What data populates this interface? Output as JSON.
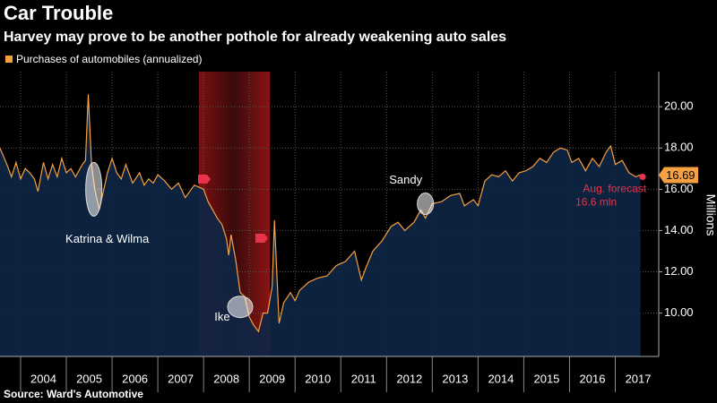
{
  "chart_data": {
    "type": "area",
    "title": "Car Trouble",
    "subtitle": "Harvey may prove to be another pothole for already weakening auto sales",
    "ylabel": "Millions",
    "source": "Source: Ward's Automotive",
    "x": [
      2003.55,
      2003.7,
      2003.8,
      2003.9,
      2004.0,
      2004.1,
      2004.2,
      2004.3,
      2004.38,
      2004.5,
      2004.6,
      2004.7,
      2004.8,
      2004.9,
      2005.0,
      2005.1,
      2005.2,
      2005.35,
      2005.42,
      2005.48,
      2005.55,
      2005.62,
      2005.72,
      2005.9,
      2006.0,
      2006.1,
      2006.2,
      2006.3,
      2006.45,
      2006.6,
      2006.7,
      2006.8,
      2006.9,
      2007.0,
      2007.15,
      2007.3,
      2007.45,
      2007.6,
      2007.8,
      2008.0,
      2008.1,
      2008.2,
      2008.3,
      2008.4,
      2008.5,
      2008.55,
      2008.6,
      2008.7,
      2008.8,
      2008.9,
      2009.0,
      2009.1,
      2009.2,
      2009.3,
      2009.4,
      2009.5,
      2009.55,
      2009.65,
      2009.75,
      2009.9,
      2010.0,
      2010.1,
      2010.3,
      2010.5,
      2010.7,
      2010.9,
      2011.1,
      2011.3,
      2011.45,
      2011.55,
      2011.7,
      2011.9,
      2012.1,
      2012.25,
      2012.4,
      2012.6,
      2012.75,
      2012.85,
      2013.0,
      2013.2,
      2013.4,
      2013.6,
      2013.7,
      2013.9,
      2014.0,
      2014.15,
      2014.3,
      2014.45,
      2014.6,
      2014.75,
      2014.9,
      2015.05,
      2015.2,
      2015.35,
      2015.5,
      2015.65,
      2015.8,
      2015.95,
      2016.05,
      2016.2,
      2016.35,
      2016.5,
      2016.65,
      2016.8,
      2016.9,
      2017.0,
      2017.15,
      2017.3,
      2017.45,
      2017.55
    ],
    "series": [
      {
        "name": "Purchases of automobiles (annualized)",
        "color": "#f5a041",
        "values": [
          18.0,
          17.2,
          16.6,
          17.3,
          16.5,
          17.0,
          16.8,
          16.5,
          15.9,
          17.3,
          16.5,
          17.2,
          16.6,
          17.5,
          16.8,
          17.0,
          16.6,
          17.2,
          17.4,
          20.6,
          17.2,
          16.0,
          15.0,
          16.8,
          17.5,
          16.8,
          16.5,
          17.2,
          16.3,
          16.8,
          16.2,
          16.5,
          16.3,
          16.7,
          16.4,
          16.0,
          16.3,
          15.6,
          16.2,
          16.0,
          15.4,
          15.0,
          14.6,
          14.3,
          13.6,
          12.8,
          13.8,
          12.6,
          11.0,
          10.8,
          9.8,
          9.4,
          9.1,
          10.0,
          10.0,
          11.3,
          14.5,
          9.5,
          10.5,
          11.0,
          10.6,
          11.1,
          11.5,
          11.7,
          11.8,
          12.3,
          12.5,
          13.0,
          11.6,
          12.2,
          13.0,
          13.5,
          14.2,
          14.4,
          14.0,
          14.4,
          15.0,
          14.6,
          15.3,
          15.4,
          15.7,
          15.8,
          15.2,
          15.5,
          15.2,
          16.4,
          16.7,
          16.6,
          16.9,
          16.4,
          16.8,
          16.9,
          17.1,
          17.5,
          17.3,
          17.8,
          18.0,
          17.9,
          17.3,
          17.5,
          16.9,
          17.5,
          17.1,
          17.8,
          18.1,
          17.2,
          17.4,
          16.8,
          16.6,
          16.7
        ]
      }
    ],
    "last_value": {
      "value": 16.69,
      "label": "16.69"
    },
    "forecast": {
      "x": 2017.6,
      "value": 16.6,
      "label": "Aug. forecast",
      "sublabel": "16.6 mln",
      "color": "#e8334a"
    },
    "recession": [
      2007.9,
      2009.45
    ],
    "annotations": [
      {
        "text": "Katrina & Wilma",
        "x": 2005.6,
        "y": 16.0
      },
      {
        "text": "Ike",
        "x": 2008.8,
        "y": 10.3
      },
      {
        "text": "Sandy",
        "x": 2012.85,
        "y": 15.3
      }
    ],
    "xlim": [
      2003.55,
      2017.95
    ],
    "xticks": [
      2004,
      2005,
      2006,
      2007,
      2008,
      2009,
      2010,
      2011,
      2012,
      2013,
      2014,
      2015,
      2016,
      2017
    ],
    "ylim": [
      7.9,
      21.7
    ],
    "yticks": [
      {
        "value": 10,
        "label": "10.00"
      },
      {
        "value": 12,
        "label": "12.00"
      },
      {
        "value": 14,
        "label": "14.00"
      },
      {
        "value": 16,
        "label": "16.00"
      },
      {
        "value": 18,
        "label": "18.00"
      },
      {
        "value": 20,
        "label": "20.00"
      }
    ],
    "grid": true
  }
}
